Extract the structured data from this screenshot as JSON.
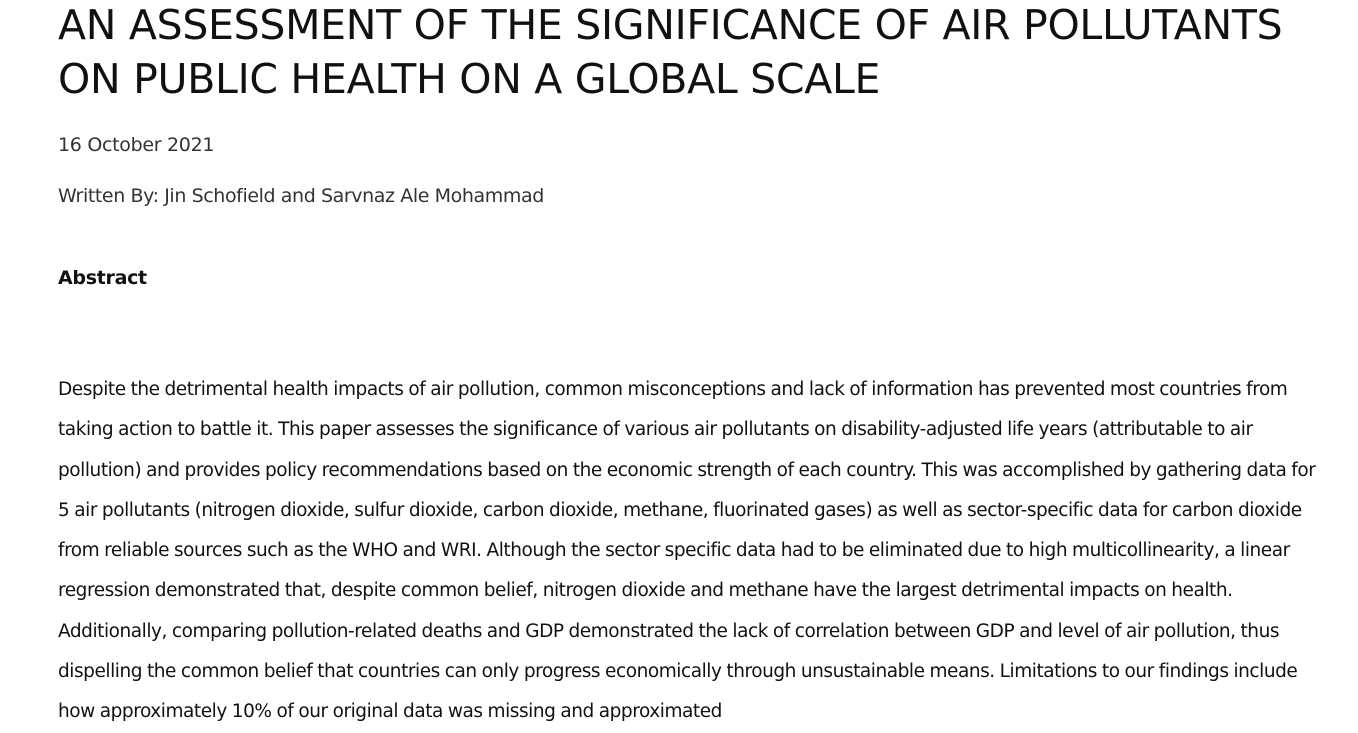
{
  "article": {
    "title": "AN ASSESSMENT OF THE SIGNIFICANCE OF AIR POLLUTANTS ON PUBLIC HEALTH ON A GLOBAL SCALE",
    "date": "16 October 2021",
    "authors": "Written By: Jin Schofield and Sarvnaz Ale Mohammad",
    "abstract_heading": "Abstract",
    "abstract_text": "Despite the detrimental health impacts of air pollution, common misconceptions and lack of information has prevented most countries from taking action to battle it. This paper assesses the significance of various air pollutants on disability-adjusted life years (attributable to air pollution) and provides policy recommendations based on the economic strength of each country. This was accomplished by gathering data for 5 air pollutants (nitrogen dioxide, sulfur dioxide, carbon dioxide, methane, fluorinated gases) as well as sector-specific data for carbon dioxide from reliable sources such as the WHO and WRI. Although the sector specific data had to be eliminated due to high multicollinearity, a linear regression demonstrated that, despite common belief, nitrogen dioxide and methane have the largest detrimental impacts on health. Additionally, comparing pollution-related deaths and GDP demonstrated the lack of correlation between GDP and level of air pollution, thus dispelling the common belief that countries can only progress economically through unsustainable means. Limitations to our findings include how approximately 10% of our original data was missing and approximated"
  }
}
